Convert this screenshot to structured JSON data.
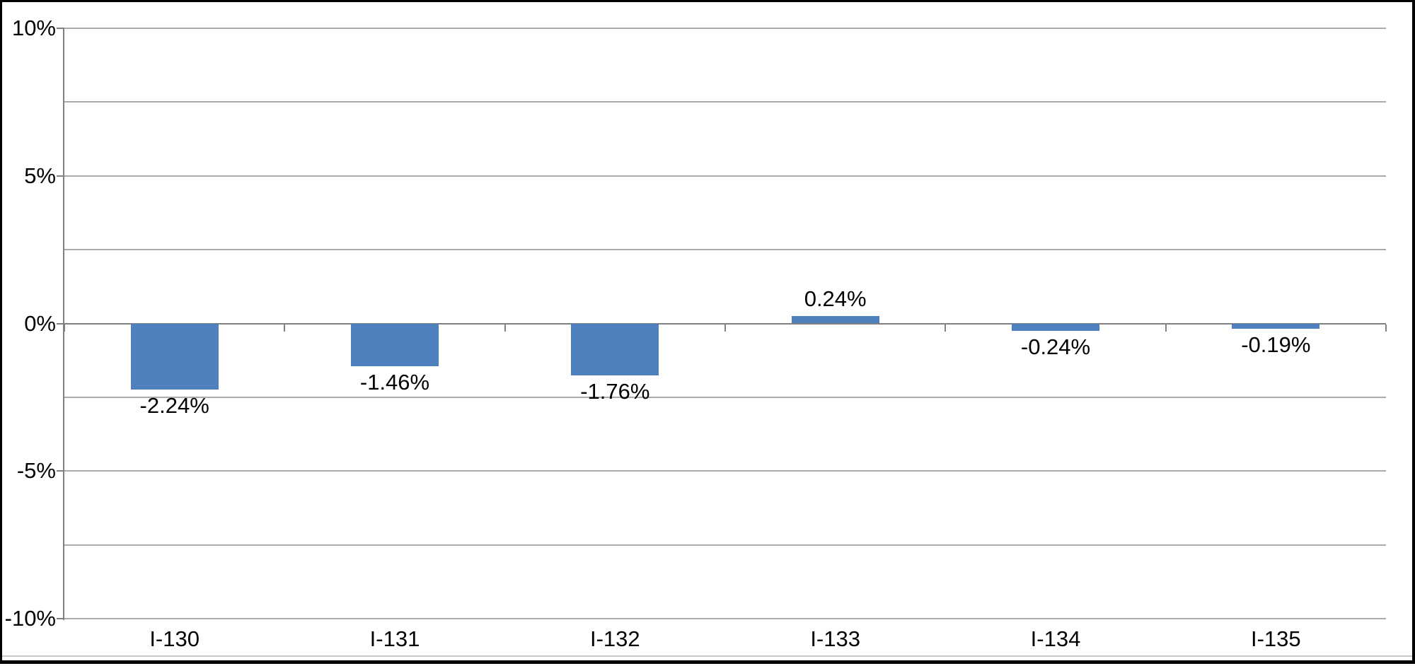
{
  "window": {
    "background_color": "#ffffff",
    "frame_border_color": "#000000"
  },
  "chart_data": {
    "type": "bar",
    "title": "",
    "xlabel": "",
    "ylabel": "",
    "categories": [
      "I-130",
      "I-131",
      "I-132",
      "I-133",
      "I-134",
      "I-135"
    ],
    "values": [
      -2.24,
      -1.46,
      -1.76,
      0.24,
      -0.24,
      -0.19
    ],
    "data_labels": [
      "-2.24%",
      "-1.46%",
      "-1.76%",
      "0.24%",
      "-0.24%",
      "-0.19%"
    ],
    "ylim": [
      -10,
      10
    ],
    "y_major_ticks": [
      {
        "value": 10,
        "label": "10%"
      },
      {
        "value": 5,
        "label": "5%"
      },
      {
        "value": 0,
        "label": "0%"
      },
      {
        "value": -5,
        "label": "-5%"
      },
      {
        "value": -10,
        "label": "-10%"
      }
    ],
    "y_minor_grid_step": 2.5,
    "grid": true,
    "legend": "none",
    "bar_color": "#4e81bd",
    "gridline_color": "#ababab",
    "axis_color": "#808080",
    "label_color": "#000000"
  }
}
